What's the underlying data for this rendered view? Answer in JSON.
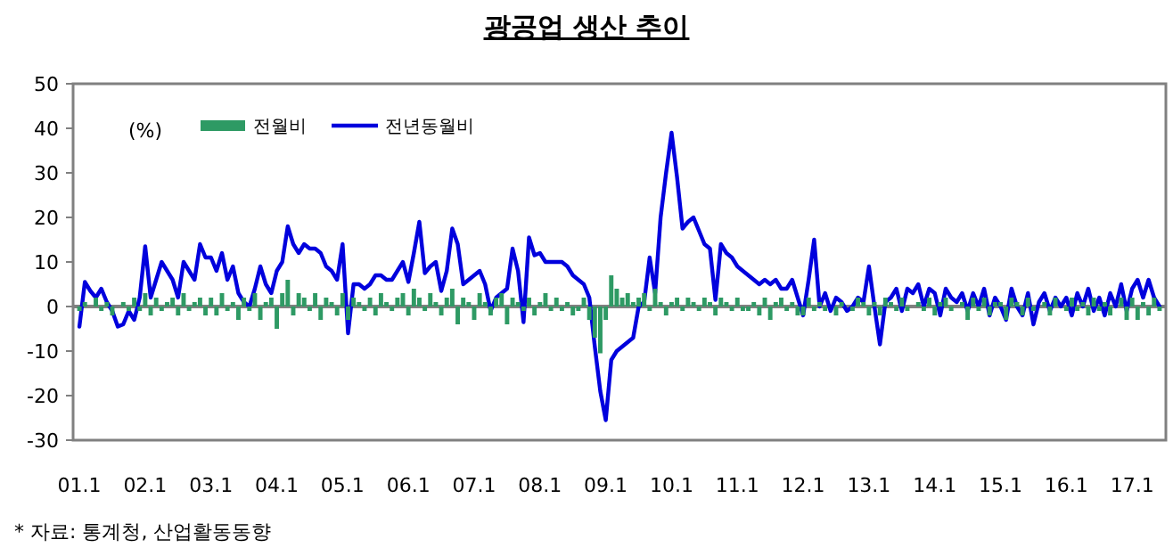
{
  "chart_data": {
    "type": "bar",
    "title": "광공업 생산 추이",
    "categories": [
      "01.1",
      null,
      null,
      null,
      null,
      null,
      null,
      null,
      null,
      null,
      null,
      null,
      "02.1",
      null,
      null,
      null,
      null,
      null,
      null,
      null,
      null,
      null,
      null,
      null,
      "03.1",
      null,
      null,
      null,
      null,
      null,
      null,
      null,
      null,
      null,
      null,
      null,
      "04.1",
      null,
      null,
      null,
      null,
      null,
      null,
      null,
      null,
      null,
      null,
      null,
      "05.1",
      null,
      null,
      null,
      null,
      null,
      null,
      null,
      null,
      null,
      null,
      null,
      "06.1",
      null,
      null,
      null,
      null,
      null,
      null,
      null,
      null,
      null,
      null,
      null,
      "07.1",
      null,
      null,
      null,
      null,
      null,
      null,
      null,
      null,
      null,
      null,
      null,
      "08.1",
      null,
      null,
      null,
      null,
      null,
      null,
      null,
      null,
      null,
      null,
      null,
      "09.1",
      null,
      null,
      null,
      null,
      null,
      null,
      null,
      null,
      null,
      null,
      null,
      "10.1",
      null,
      null,
      null,
      null,
      null,
      null,
      null,
      null,
      null,
      null,
      null,
      "11.1",
      null,
      null,
      null,
      null,
      null,
      null,
      null,
      null,
      null,
      null,
      null,
      "12.1",
      null,
      null,
      null,
      null,
      null,
      null,
      null,
      null,
      null,
      null,
      null,
      "13.1",
      null,
      null,
      null,
      null,
      null,
      null,
      null,
      null,
      null,
      null,
      null,
      "14.1",
      null,
      null,
      null,
      null,
      null,
      null,
      null,
      null,
      null,
      null,
      null,
      "15.1",
      null,
      null,
      null,
      null,
      null,
      null,
      null,
      null,
      null,
      null,
      null,
      "16.1",
      null,
      null,
      null,
      null,
      null,
      null,
      null,
      null,
      null,
      null,
      null,
      "17.1",
      null,
      null,
      null,
      null,
      null
    ],
    "series": [
      {
        "name": "전월비",
        "color": "#2e9a64",
        "values": [
          -1,
          1,
          0,
          2,
          -1,
          1,
          -2,
          0,
          1,
          -1,
          2,
          -1,
          3,
          -2,
          2,
          -1,
          1,
          2,
          -2,
          3,
          -1,
          1,
          2,
          -2,
          2,
          -2,
          3,
          -1,
          1,
          -3,
          2,
          -1,
          3,
          -3,
          1,
          2,
          -5,
          3,
          6,
          -2,
          3,
          2,
          -1,
          3,
          -3,
          2,
          1,
          -2,
          3,
          -3,
          2,
          1,
          -1,
          2,
          -2,
          3,
          1,
          -1,
          2,
          3,
          -2,
          4,
          2,
          -1,
          3,
          1,
          -2,
          2,
          4,
          -4,
          2,
          1,
          -3,
          3,
          1,
          -2,
          2,
          3,
          -4,
          2,
          1,
          -1,
          2,
          -2,
          1,
          3,
          -1,
          2,
          -1,
          1,
          -2,
          -1,
          2,
          -3,
          -7,
          -10.5,
          -3,
          7,
          4,
          2,
          3,
          1,
          2,
          3,
          -1,
          4,
          1,
          -2,
          1,
          2,
          -1,
          2,
          1,
          -1,
          2,
          1,
          -2,
          2,
          1,
          -1,
          2,
          -1,
          -1,
          1,
          -2,
          2,
          -3,
          1,
          2,
          -1,
          1,
          -2,
          -2,
          2,
          -1,
          1,
          -1,
          0,
          -2,
          1,
          0,
          -1,
          2,
          1,
          -2,
          1,
          -2,
          2,
          1,
          -1,
          2,
          -1,
          0,
          1,
          -1,
          2,
          -2,
          1,
          2,
          -1,
          0,
          1,
          -3,
          2,
          -1,
          2,
          -2,
          1,
          1,
          -3,
          2,
          1,
          -2,
          2,
          -1,
          0,
          1,
          -2,
          2,
          0,
          -1,
          2,
          -1,
          1,
          -2,
          2,
          -1,
          1,
          -2,
          0,
          2,
          -3,
          2,
          -3,
          1,
          -2,
          2,
          -1
        ]
      },
      {
        "name": "전년동월비",
        "type": "line",
        "color": "#0000dd",
        "values": [
          -4.5,
          5.5,
          3.5,
          2,
          4,
          1,
          -1,
          -4.5,
          -4,
          -1,
          -3,
          2,
          13.5,
          2,
          6,
          10,
          8,
          6,
          2,
          10,
          8,
          6,
          14,
          11,
          11,
          8,
          12,
          6,
          9,
          3,
          1,
          0,
          4,
          9,
          5,
          3,
          8,
          10,
          18,
          14,
          12,
          14,
          13,
          13,
          12,
          9,
          8,
          6,
          14,
          -6,
          5,
          5,
          4,
          5,
          7,
          7,
          6,
          6,
          8,
          10,
          5.5,
          12,
          19,
          7.5,
          9,
          10,
          3.5,
          8,
          17.5,
          14,
          5,
          6,
          7,
          8,
          5,
          -1,
          2,
          3,
          4,
          13,
          8,
          -3.5,
          15.5,
          11.5,
          12,
          10,
          10,
          10,
          10,
          9,
          7,
          6,
          5,
          2,
          -9,
          -19,
          -25.5,
          -12,
          -10,
          -9,
          -8,
          -7,
          0,
          1,
          11,
          3,
          20,
          30,
          39,
          29,
          17.5,
          19,
          20,
          17,
          14,
          13,
          1.5,
          14,
          12,
          11,
          9,
          8,
          7,
          6,
          5,
          6,
          5,
          6,
          4,
          4,
          6,
          2,
          -2,
          6,
          15,
          0,
          3,
          -1,
          2,
          1,
          -1,
          0,
          2,
          1,
          9,
          0,
          -8.5,
          1,
          2,
          4,
          -1,
          4,
          3,
          5,
          0,
          4,
          3,
          -2,
          4,
          2,
          1,
          3,
          -1,
          3,
          0,
          4,
          -2,
          2,
          0,
          -3,
          4,
          0,
          -2,
          3,
          -4,
          1,
          3,
          -1,
          2,
          0,
          2,
          -2,
          3,
          0,
          4,
          -1,
          2,
          -2,
          3,
          0,
          5,
          -1,
          4,
          6,
          2,
          6,
          2,
          0
        ]
      }
    ],
    "ylim": [
      -30,
      50
    ],
    "yticks": [
      -30,
      -20,
      -10,
      0,
      10,
      20,
      30,
      40,
      50
    ],
    "legend": "top left",
    "ref_lines": [
      {
        "axis": "y",
        "value": 0,
        "color": "#808080"
      }
    ],
    "annotations": [
      "(%)",
      "* 자료: 통계청, 산업활동동향"
    ]
  }
}
